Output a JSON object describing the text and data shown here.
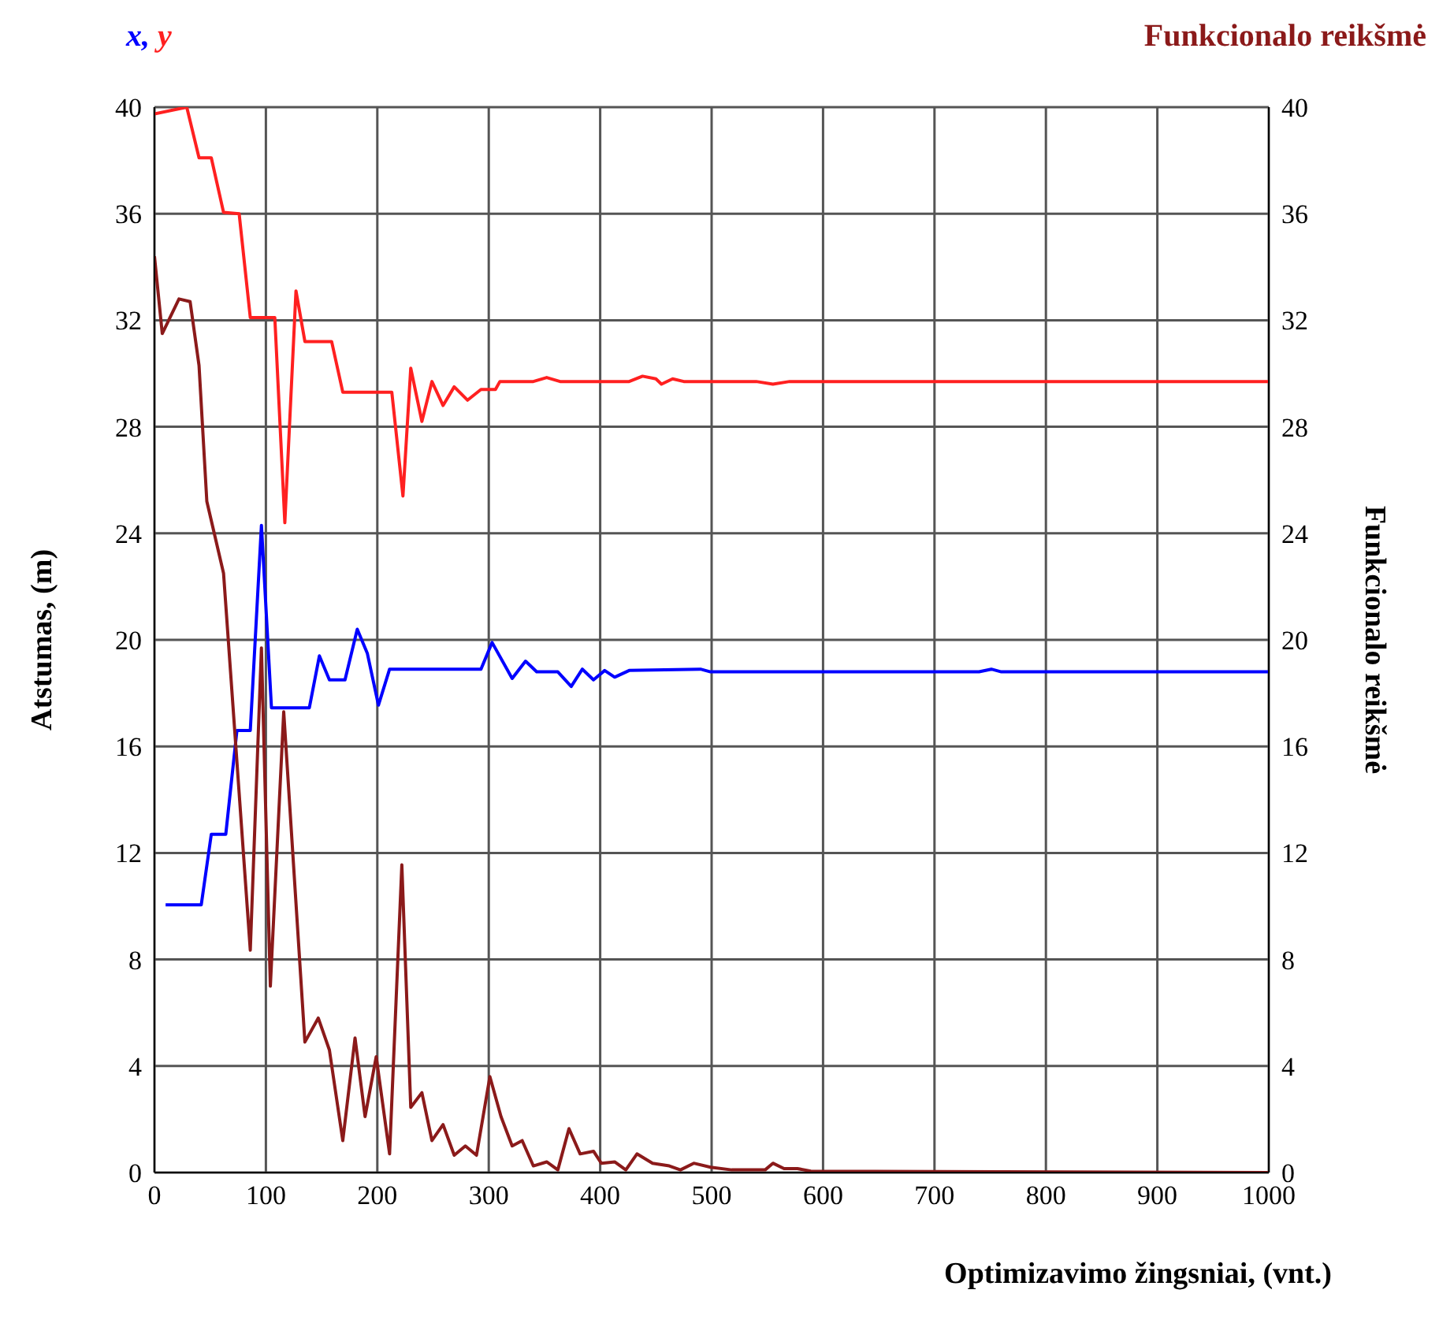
{
  "chart_data": {
    "type": "line",
    "xlabel": "Optimizavimo žingsniai, (vnt.)",
    "ylabel": "Atstumas, (m)",
    "y2label": "Funkcionalo reikšmė",
    "xlim": [
      0,
      1000
    ],
    "xticks": [
      0,
      100,
      200,
      300,
      400,
      500,
      600,
      700,
      800,
      900,
      1000
    ],
    "ylim": [
      0,
      40
    ],
    "yticks": [
      0,
      4,
      8,
      12,
      16,
      20,
      24,
      28,
      32,
      36,
      40
    ],
    "y2lim": [
      0,
      40
    ],
    "y2ticks": [
      0,
      4,
      8,
      12,
      16,
      20,
      24,
      28,
      32,
      36,
      40
    ],
    "grid": true,
    "annotations": [
      ","
    ],
    "line_style": "solid",
    "series": [
      {
        "name": "x",
        "color": "#0000ff",
        "x": [
          10,
          42,
          51,
          64,
          74,
          86,
          96,
          105,
          139,
          148,
          157,
          171,
          182,
          191,
          201,
          211,
          293,
          303,
          321,
          333,
          343,
          362,
          374,
          384,
          394,
          404,
          413,
          426,
          490,
          499,
          740,
          751,
          760,
          1000
        ],
        "values": [
          10.05,
          10.05,
          12.7,
          12.7,
          16.6,
          16.6,
          24.3,
          17.45,
          17.45,
          19.4,
          18.5,
          18.5,
          20.4,
          19.5,
          17.55,
          18.9,
          18.9,
          19.9,
          18.55,
          19.2,
          18.8,
          18.8,
          18.25,
          18.9,
          18.5,
          18.85,
          18.6,
          18.85,
          18.9,
          18.8,
          18.8,
          18.9,
          18.8,
          18.8
        ]
      },
      {
        "name": "y",
        "color": "#ff2020",
        "x": [
          0,
          29,
          40,
          51,
          62,
          76,
          86,
          108,
          117,
          127,
          135,
          159,
          169,
          213,
          223,
          230,
          240,
          249,
          259,
          269,
          281,
          293,
          306,
          310,
          340,
          352,
          364,
          426,
          438,
          450,
          455,
          465,
          475,
          540,
          555,
          570,
          1000
        ],
        "values": [
          39.75,
          40,
          38.1,
          38.1,
          36.05,
          36,
          32.1,
          32.1,
          24.4,
          33.1,
          31.2,
          31.2,
          29.3,
          29.3,
          25.4,
          30.2,
          28.2,
          29.7,
          28.8,
          29.5,
          29,
          29.4,
          29.4,
          29.7,
          29.7,
          29.85,
          29.7,
          29.7,
          29.9,
          29.8,
          29.6,
          29.8,
          29.7,
          29.7,
          29.6,
          29.7,
          29.7
        ]
      },
      {
        "name": "Funkcionalo reikšmė",
        "color": "#8b1a1a",
        "axis": "y2",
        "x": [
          0,
          7,
          22,
          32,
          40,
          47,
          62,
          86,
          96,
          104,
          116,
          135,
          147,
          157,
          169,
          180,
          189,
          199,
          211,
          222,
          230,
          240,
          249,
          259,
          269,
          279,
          289,
          301,
          311,
          321,
          330,
          340,
          352,
          362,
          372,
          382,
          394,
          401,
          413,
          423,
          433,
          447,
          462,
          472,
          484,
          499,
          518,
          548,
          555,
          565,
          577,
          589,
          1000
        ],
        "values": [
          34.4,
          31.5,
          32.8,
          32.7,
          30.3,
          25.2,
          22.5,
          8.35,
          19.7,
          7,
          17.3,
          4.9,
          5.8,
          4.6,
          1.2,
          5.05,
          2.1,
          4.35,
          0.7,
          11.55,
          2.45,
          3,
          1.2,
          1.8,
          0.65,
          1,
          0.65,
          3.6,
          2.1,
          1,
          1.2,
          0.25,
          0.4,
          0.1,
          1.65,
          0.7,
          0.8,
          0.35,
          0.4,
          0.1,
          0.7,
          0.35,
          0.25,
          0.1,
          0.35,
          0.2,
          0.1,
          0.1,
          0.35,
          0.15,
          0.15,
          0.05,
          0
        ]
      }
    ]
  }
}
